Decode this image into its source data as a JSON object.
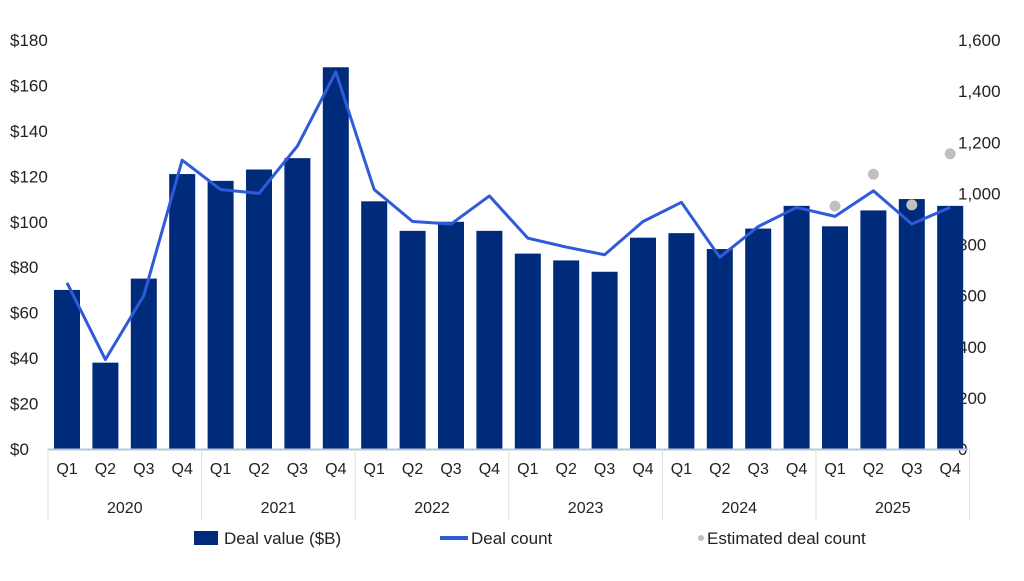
{
  "chart_data": {
    "type": "bar",
    "title": "",
    "categories": [
      "Q1",
      "Q2",
      "Q3",
      "Q4",
      "Q1",
      "Q2",
      "Q3",
      "Q4",
      "Q1",
      "Q2",
      "Q3",
      "Q4",
      "Q1",
      "Q2",
      "Q3",
      "Q4",
      "Q1",
      "Q2",
      "Q3",
      "Q4",
      "Q1",
      "Q2",
      "Q3",
      "Q4"
    ],
    "groups": [
      "2020",
      "2021",
      "2022",
      "2023",
      "2024",
      "2025"
    ],
    "y_left": {
      "range": [
        0,
        180
      ],
      "ticks": [
        "$0",
        "$20",
        "$40",
        "$60",
        "$80",
        "$100",
        "$120",
        "$140",
        "$160",
        "$180"
      ],
      "tick_values": [
        0,
        20,
        40,
        60,
        80,
        100,
        120,
        140,
        160,
        180
      ]
    },
    "y_right": {
      "range": [
        0,
        1600
      ],
      "ticks": [
        "0",
        "200",
        "400",
        "600",
        "800",
        "1,000",
        "1,200",
        "1,400",
        "1,600"
      ],
      "tick_values": [
        0,
        200,
        400,
        600,
        800,
        1000,
        1200,
        1400,
        1600
      ]
    },
    "grid": false,
    "legend_placement": "bottom",
    "series": [
      {
        "name": "Deal value ($B)",
        "type": "bar",
        "axis": "left",
        "color": "#002b7a",
        "values": [
          70,
          38,
          75,
          121,
          118,
          123,
          128,
          168,
          109,
          96,
          100,
          96,
          86,
          83,
          78,
          93,
          95,
          88,
          97,
          107,
          98,
          105,
          110,
          107
        ]
      },
      {
        "name": "Deal count",
        "type": "line",
        "axis": "right",
        "color": "#2f5bd8",
        "values": [
          650,
          350,
          600,
          1130,
          1015,
          1000,
          1185,
          1475,
          1015,
          890,
          880,
          990,
          825,
          790,
          760,
          890,
          965,
          750,
          870,
          945,
          910,
          1010,
          880,
          945
        ]
      },
      {
        "name": "Estimated deal count",
        "type": "scatter",
        "axis": "right",
        "color": "#c0c0c0",
        "values": [
          null,
          null,
          null,
          null,
          null,
          null,
          null,
          null,
          null,
          null,
          null,
          null,
          null,
          null,
          null,
          null,
          null,
          null,
          null,
          null,
          950,
          1075,
          955,
          1155
        ]
      }
    ]
  }
}
